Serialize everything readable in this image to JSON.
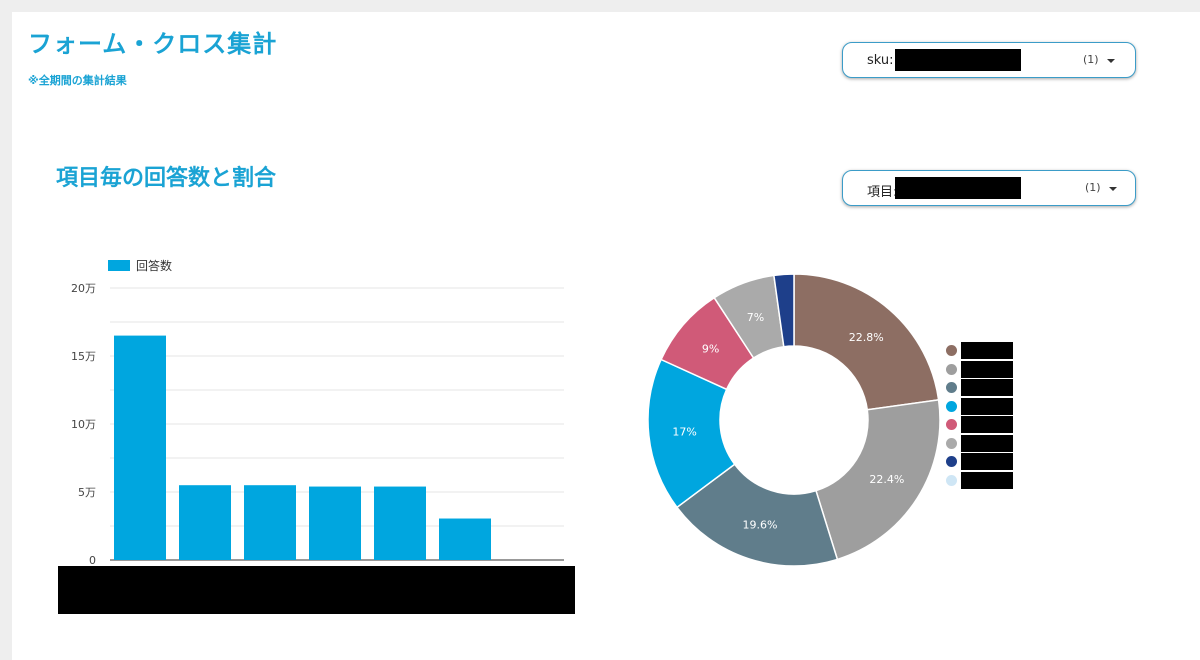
{
  "header": {
    "title": "フォーム・クロス集計",
    "note": "※全期間の集計結果"
  },
  "filters": {
    "sku": {
      "label": "sku:",
      "count": "(1)"
    },
    "item": {
      "label": "項目:",
      "count": "(1)"
    }
  },
  "section": {
    "title": "項目毎の回答数と割合"
  },
  "colors": {
    "accent": "#1aa3d4",
    "bar": "#00a6df"
  },
  "chart_data": [
    {
      "type": "bar",
      "legend": [
        "回答数"
      ],
      "series": [
        {
          "name": "回答数",
          "values": [
            165000,
            55000,
            55000,
            54000,
            54000,
            30500
          ]
        }
      ],
      "yticks": [
        "0",
        "5万",
        "10万",
        "15万",
        "20万"
      ],
      "ylim": [
        0,
        200000
      ],
      "grid": true,
      "legend_position": "top-left"
    },
    {
      "type": "pie",
      "donut": true,
      "slices": [
        {
          "value": 22.8,
          "label": "22.8%",
          "color": "#8d6e63"
        },
        {
          "value": 22.4,
          "label": "22.4%",
          "color": "#9e9e9e"
        },
        {
          "value": 19.6,
          "label": "19.6%",
          "color": "#607d8b"
        },
        {
          "value": 17.0,
          "label": "17%",
          "color": "#00a6df"
        },
        {
          "value": 9.0,
          "label": "9%",
          "color": "#d05a78"
        },
        {
          "value": 7.0,
          "label": "7%",
          "color": "#aaaaaa"
        },
        {
          "value": 2.2,
          "label": "",
          "color": "#1e3f8a"
        }
      ],
      "legend_colors": [
        "#8d6e63",
        "#9e9e9e",
        "#607d8b",
        "#00a6df",
        "#d05a78",
        "#aaaaaa",
        "#1e3f8a",
        "#cfe6f5"
      ],
      "legend_position": "right"
    }
  ]
}
